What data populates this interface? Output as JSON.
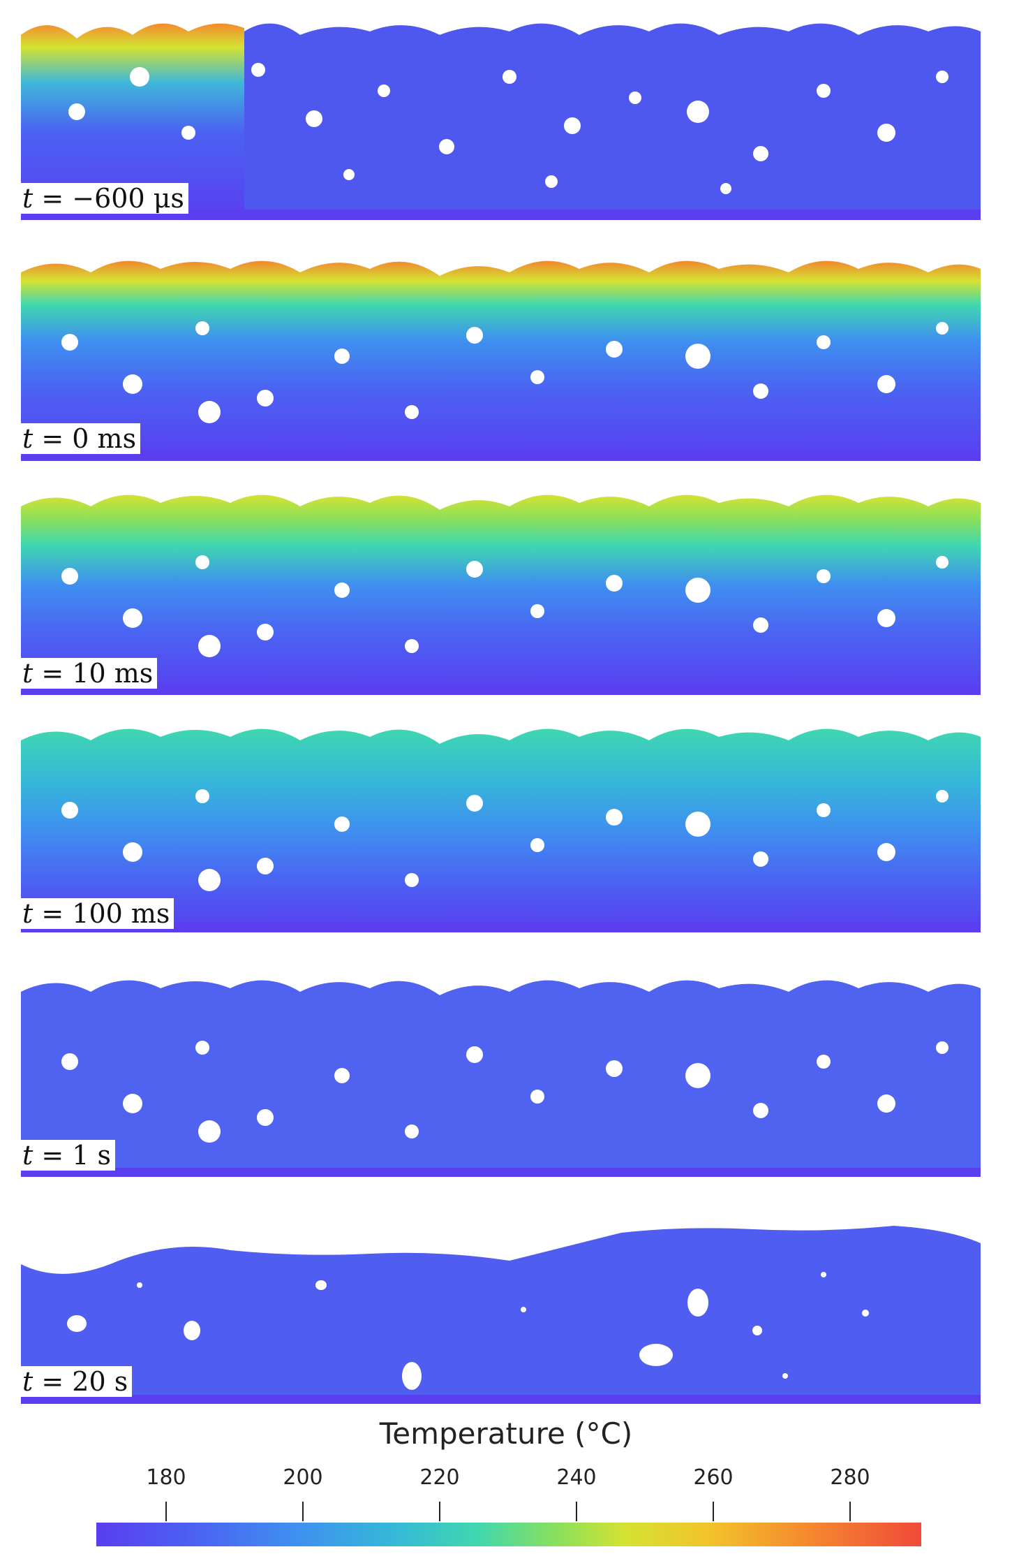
{
  "panels": [
    {
      "time_value": "−600 μs",
      "temperature_state": "hot-top-left-only"
    },
    {
      "time_value": "0 ms",
      "temperature_state": "hot-top-surface"
    },
    {
      "time_value": "10 ms",
      "temperature_state": "warm-top-surface"
    },
    {
      "time_value": "100 ms",
      "temperature_state": "lukewarm-top-surface"
    },
    {
      "time_value": "1 s",
      "temperature_state": "uniform-cool"
    },
    {
      "time_value": "20 s",
      "temperature_state": "sintered-dense"
    }
  ],
  "time_var": "t",
  "colorbar": {
    "title": "Temperature (°C)",
    "ticks": [
      "180",
      "200",
      "220",
      "240",
      "260",
      "280"
    ],
    "range": [
      167,
      290
    ],
    "tick_values": [
      180,
      200,
      220,
      240,
      260,
      280
    ],
    "colors": {
      "cold": "#5a3ef0",
      "cool": "#4b62f2",
      "mid": "#3fd7b0",
      "warm": "#d4e232",
      "hot": "#f58a2e",
      "hottest": "#ef4a3a"
    }
  }
}
